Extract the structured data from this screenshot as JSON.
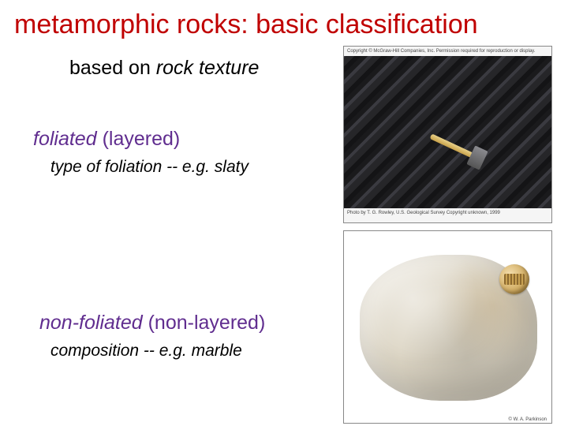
{
  "title": {
    "text": "metamorphic rocks: basic classification",
    "color": "#c00000"
  },
  "subtitle": {
    "prefix": "based on",
    "italic": " rock texture"
  },
  "foliated": {
    "heading_italic": "foliated",
    "heading_rest": " (layered)",
    "color": "#602d8f",
    "sub": "type of foliation -- e.g. slaty"
  },
  "nonfoliated": {
    "heading_italic": "non-foliated",
    "heading_rest": " (non-layered)",
    "color": "#602d8f",
    "sub": "composition -- e.g. marble"
  },
  "image1": {
    "caption_top": "Copyright © McGraw-Hill Companies, Inc. Permission required for reproduction or display.",
    "caption_bot": "Photo by T. G. Rowley, U.S. Geological Survey\nCopyright unknown, 1999"
  },
  "image2": {
    "caption_bot": "© W. A. Parkinson"
  }
}
